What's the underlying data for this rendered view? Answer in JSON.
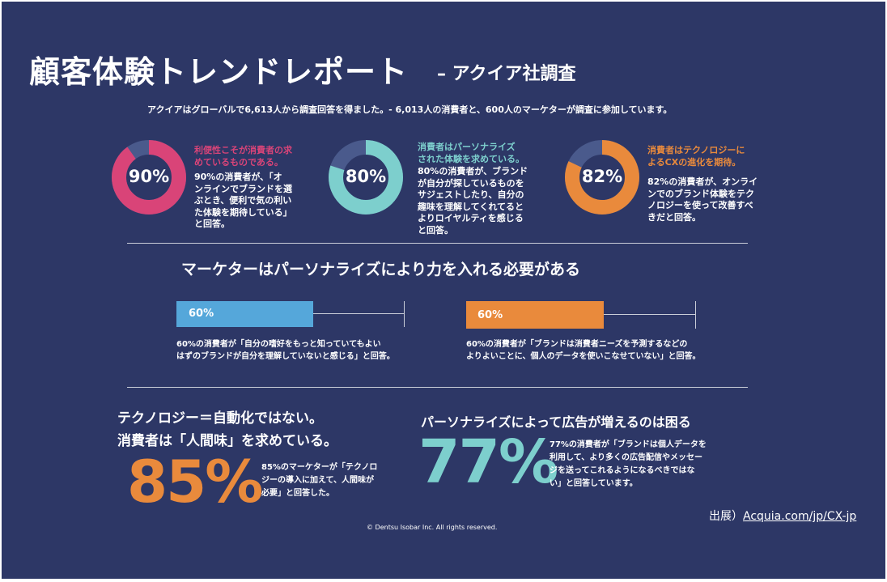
{
  "colors": {
    "background": "#2d3766",
    "pink": "#d94478",
    "teal": "#7dcfcd",
    "orange": "#e98a3c",
    "blue": "#55a7da",
    "track": "#4a5a8c"
  },
  "header": {
    "title": "顧客体験トレンドレポート",
    "subtitle": "– アクイア社調査",
    "intro": "アクイアはグローバルで6,613人から調査回答を得ました。- 6,013人の消費者と、600人のマーケターが調査に参加しています。"
  },
  "donuts": [
    {
      "percent": 90,
      "label": "90%",
      "heading": [
        "利便性こそが消費者の求",
        "めているものである。"
      ],
      "body": [
        "90%の消費者が、「オ",
        "ンラインでブランドを選",
        "ぶとき、便利で気の利い",
        "た体験を期待している」",
        "と回答。"
      ]
    },
    {
      "percent": 80,
      "label": "80%",
      "heading": [
        "消費者はパーソナライズ",
        "された体験を求めている。"
      ],
      "body": [
        "80%の消費者が、ブランド",
        "が自分が探しているものを",
        "サジェストしたり、自分の",
        "趣味を理解してくれてると",
        "よりロイヤルティを感じる",
        "と回答。"
      ]
    },
    {
      "percent": 82,
      "label": "82%",
      "heading": [
        "消費者はテクノロジーに",
        "よるCXの進化を期待。"
      ],
      "body": [
        "82%の消費者が、オンライ",
        "ンでのブランド体験をテク",
        "ノロジーを使って改善すべ",
        "きだと回答。"
      ]
    }
  ],
  "marketer": {
    "title": "マーケターはパーソナライズにより力を入れる必要がある",
    "bars": [
      {
        "percent": 60,
        "label": "60%",
        "note": [
          "60%の消費者が「自分の嗜好をもっと知っていてもよい",
          "はずのブランドが自分を理解していないと感じる」と回答。"
        ]
      },
      {
        "percent": 60,
        "label": "60%",
        "note": [
          "60%の消費者が「ブランドは消費者ニーズを予測するなどの",
          "よりよいことに、個人のデータを使いこなせていない」と回答。"
        ]
      }
    ]
  },
  "tech": {
    "title_lines": [
      "テクノロジー＝自動化ではない。",
      "消費者は「人間味」を求めている。"
    ],
    "big": "85%",
    "note": [
      "85%のマーケターが「テクノロ",
      "ジーの導入に加えて、人間味が",
      "必要」と回答した。"
    ]
  },
  "ads": {
    "title": "パーソナライズによって広告が増えるのは困る",
    "big": "77%",
    "note": [
      "77%の消費者が「ブランドは個人データを",
      "利用して、より多くの広告配信やメッセー",
      "ジを送ってこれるようになるべきではな",
      "い」と回答しています。"
    ]
  },
  "footer": {
    "source_prefix": "出展）",
    "source_link": "Acquia.com/jp/CX-jp",
    "copyright": "© Dentsu Isobar Inc. All rights reserved."
  }
}
